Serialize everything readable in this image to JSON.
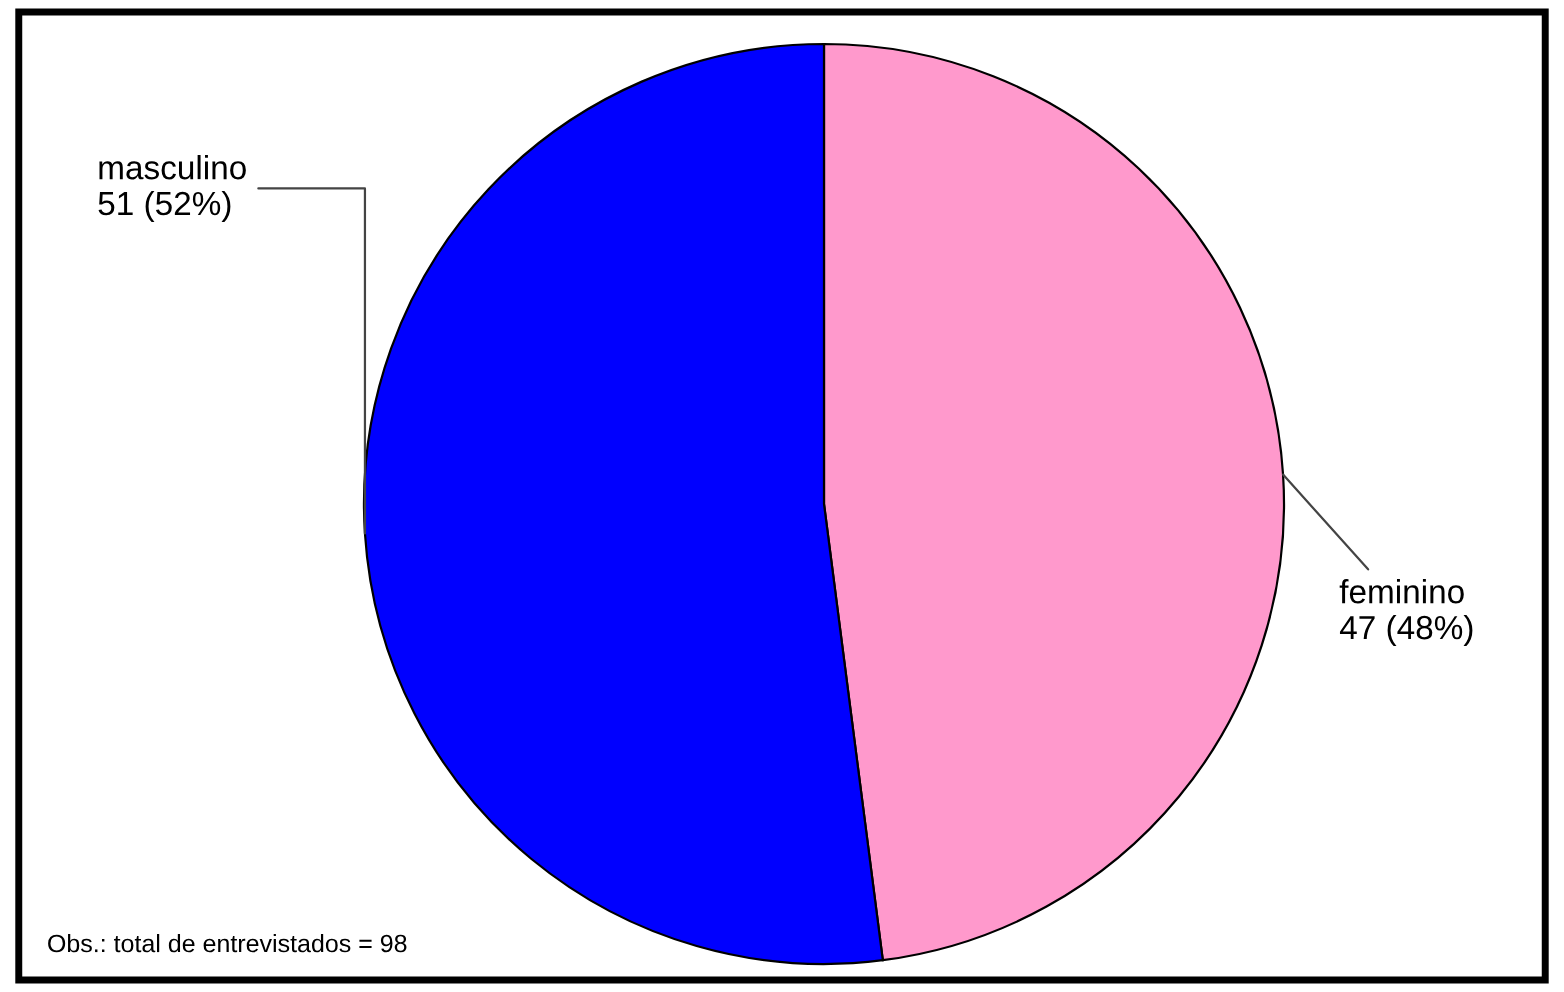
{
  "chart_data": {
    "type": "pie",
    "categories": [
      "feminino",
      "masculino"
    ],
    "values": [
      47,
      51
    ],
    "value_labels": [
      "47 (48%)",
      "51 (52%)"
    ],
    "colors": [
      "#ff99cc",
      "#0000ff"
    ],
    "annotations": [
      "Obs.: total de entrevistados = 98"
    ]
  }
}
